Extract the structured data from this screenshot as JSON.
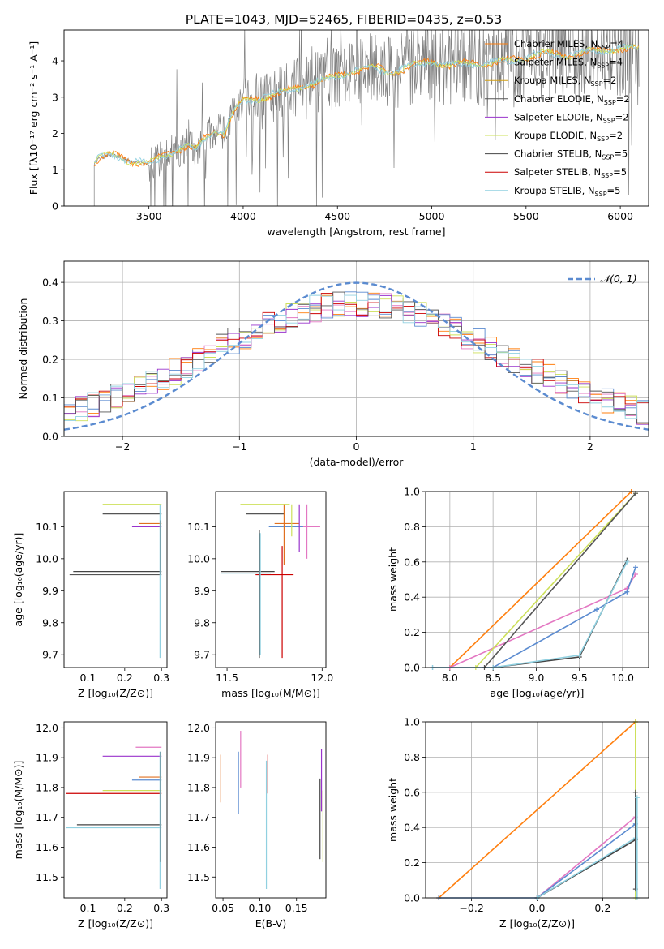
{
  "title": "PLATE=1043, MJD=52465, FIBERID=0435, z=0.53",
  "colors": {
    "chabrier_miles": "#ff7f0e",
    "salpeter_miles": "#e07020",
    "kroupa_miles": "#d4a017",
    "chabrier_elodie": "#555555",
    "salpeter_elodie": "#9933cc",
    "kroupa_elodie": "#cde05a",
    "chabrier_stelib": "#444444",
    "salpeter_stelib": "#cc0000",
    "kroupa_stelib": "#90d0e0",
    "normal": "#5b8bd0"
  },
  "chart_data": [
    {
      "id": "spectrum",
      "type": "line",
      "xlabel": "wavelength [Angstrom, rest frame]",
      "ylabel": "Flux [fλ10⁻¹⁷ erg cm⁻² s⁻¹ A⁻¹]",
      "xlim": [
        3050,
        6150
      ],
      "ylim": [
        0,
        4.85
      ],
      "xticks": [
        3500,
        4000,
        4500,
        5000,
        5500,
        6000
      ],
      "yticks": [
        0,
        1,
        2,
        3,
        4
      ],
      "continuum": {
        "x": [
          3200,
          3230,
          3260,
          3300,
          3350,
          3400,
          3450,
          3500,
          3550,
          3600,
          3650,
          3700,
          3750,
          3800,
          3850,
          3900,
          3950,
          4000,
          4100,
          4200,
          4300,
          4400,
          4500,
          4600,
          4700,
          4800,
          4900,
          5000,
          5100,
          5200,
          5300,
          5400,
          5500,
          5600,
          5700,
          5800,
          5900,
          6000,
          6100
        ],
        "y": [
          1.1,
          1.3,
          1.35,
          1.4,
          1.35,
          1.25,
          1.2,
          1.15,
          1.3,
          1.45,
          1.55,
          1.65,
          1.55,
          1.9,
          2.1,
          2.0,
          2.6,
          2.9,
          3.0,
          3.1,
          3.3,
          3.4,
          3.6,
          3.75,
          3.8,
          3.7,
          3.85,
          4.0,
          3.85,
          3.95,
          3.9,
          4.0,
          4.1,
          4.2,
          4.15,
          4.2,
          4.3,
          4.35,
          4.3
        ]
      },
      "legend": [
        {
          "label": "Chabrier MILES, N",
          "sub": "SSP",
          "tail": "=4",
          "color": "#ff7f0e"
        },
        {
          "label": "Salpeter MILES, N",
          "sub": "SSP",
          "tail": "=4",
          "color": "#e07020"
        },
        {
          "label": "Kroupa MILES, N",
          "sub": "SSP",
          "tail": "=2",
          "color": "#d4a017"
        },
        {
          "label": "Chabrier ELODIE, N",
          "sub": "SSP",
          "tail": "=2",
          "color": "#555555"
        },
        {
          "label": "Salpeter ELODIE, N",
          "sub": "SSP",
          "tail": "=2",
          "color": "#9933cc"
        },
        {
          "label": "Kroupa ELODIE, N",
          "sub": "SSP",
          "tail": "=2",
          "color": "#cde05a"
        },
        {
          "label": "Chabrier STELIB, N",
          "sub": "SSP",
          "tail": "=5",
          "color": "#444444"
        },
        {
          "label": "Salpeter STELIB, N",
          "sub": "SSP",
          "tail": "=5",
          "color": "#cc0000"
        },
        {
          "label": "Kroupa STELIB, N",
          "sub": "SSP",
          "tail": "=5",
          "color": "#90d0e0"
        }
      ]
    },
    {
      "id": "residuals",
      "type": "line",
      "xlabel": "(data-model)/error",
      "ylabel": "Normed distribution",
      "xlim": [
        -2.5,
        2.5
      ],
      "ylim": [
        0,
        0.455
      ],
      "xticks": [
        -2,
        -1,
        0,
        1,
        2
      ],
      "yticks": [
        0.0,
        0.1,
        0.2,
        0.3,
        0.4
      ],
      "grid": true,
      "legend": "𝒩(0, 1)",
      "normal_curve": {
        "mean": 0,
        "sigma": 1
      }
    },
    {
      "id": "age_vs_Z",
      "type": "scatter",
      "xlabel": "Z [log₁₀(Z/Z⊙)]",
      "ylabel": "age  [log₁₀(age/yr)]",
      "xlim": [
        0.035,
        0.315
      ],
      "ylim": [
        9.66,
        10.21
      ],
      "xticks": [
        0.1,
        0.2,
        0.3
      ],
      "yticks": [
        9.7,
        9.8,
        9.9,
        10.0,
        10.1
      ],
      "hbars": [
        {
          "y": 10.17,
          "x0": 0.14,
          "x1": 0.3,
          "color": "#cde05a"
        },
        {
          "y": 10.14,
          "x0": 0.14,
          "x1": 0.3,
          "color": "#555555"
        },
        {
          "y": 10.11,
          "x0": 0.24,
          "x1": 0.3,
          "color": "#e07020"
        },
        {
          "y": 10.1,
          "x0": 0.22,
          "x1": 0.3,
          "color": "#9933cc"
        },
        {
          "y": 9.96,
          "x0": 0.06,
          "x1": 0.3,
          "color": "#444444"
        },
        {
          "y": 9.95,
          "x0": 0.05,
          "x1": 0.3,
          "color": "#555555"
        }
      ],
      "vbars": [
        {
          "x": 0.296,
          "y0": 9.69,
          "y1": 10.17,
          "color": "#90d0e0"
        },
        {
          "x": 0.298,
          "y0": 9.95,
          "y1": 10.12,
          "color": "#444444"
        }
      ]
    },
    {
      "id": "age_vs_mass",
      "type": "scatter",
      "xlabel": "mass [log₁₀(M/M⊙)]",
      "ylabel": "",
      "xlim": [
        11.44,
        12.02
      ],
      "ylim": [
        9.66,
        10.21
      ],
      "xticks": [
        11.5,
        12.0
      ],
      "yticks": [
        9.7,
        9.8,
        9.9,
        10.0,
        10.1
      ],
      "hbars": [
        {
          "y": 10.17,
          "x0": 11.57,
          "x1": 11.83,
          "color": "#cde05a"
        },
        {
          "y": 10.14,
          "x0": 11.6,
          "x1": 11.8,
          "color": "#555555"
        },
        {
          "y": 10.11,
          "x0": 11.75,
          "x1": 11.88,
          "color": "#e07020"
        },
        {
          "y": 10.1,
          "x0": 11.8,
          "x1": 11.99,
          "color": "#e377c2"
        },
        {
          "y": 10.1,
          "x0": 11.72,
          "x1": 11.9,
          "color": "#5b8bd0"
        },
        {
          "y": 9.96,
          "x0": 11.47,
          "x1": 11.75,
          "color": "#444444"
        },
        {
          "y": 9.955,
          "x0": 11.47,
          "x1": 11.73,
          "color": "#90d0e0"
        },
        {
          "y": 9.95,
          "x0": 11.65,
          "x1": 11.85,
          "color": "#cc0000"
        }
      ],
      "vbars": [
        {
          "x": 11.67,
          "y0": 9.69,
          "y1": 10.09,
          "color": "#444444"
        },
        {
          "x": 11.675,
          "y0": 9.7,
          "y1": 10.08,
          "color": "#90d0e0"
        },
        {
          "x": 11.79,
          "y0": 9.69,
          "y1": 10.04,
          "color": "#cc0000"
        },
        {
          "x": 11.8,
          "y0": 9.98,
          "y1": 10.17,
          "color": "#e07020"
        },
        {
          "x": 11.84,
          "y0": 10.07,
          "y1": 10.17,
          "color": "#cde05a"
        },
        {
          "x": 11.88,
          "y0": 10.02,
          "y1": 10.17,
          "color": "#9933cc"
        },
        {
          "x": 11.92,
          "y0": 10.0,
          "y1": 10.17,
          "color": "#e377c2"
        }
      ]
    },
    {
      "id": "weight_vs_age",
      "type": "line",
      "xlabel": "age  [log₁₀(age/yr)]",
      "ylabel": "mass weight",
      "xlim": [
        7.72,
        10.3
      ],
      "ylim": [
        0,
        1.0
      ],
      "xticks": [
        8.0,
        8.5,
        9.0,
        9.5,
        10.0
      ],
      "yticks": [
        0.0,
        0.2,
        0.4,
        0.6,
        0.8,
        1.0
      ],
      "grid": true,
      "series": [
        {
          "color": "#ff7f0e",
          "x": [
            8.0,
            10.1
          ],
          "y": [
            0.0,
            1.0
          ]
        },
        {
          "color": "#e377c2",
          "x": [
            8.0,
            10.05,
            10.15
          ],
          "y": [
            0.0,
            0.45,
            0.53
          ]
        },
        {
          "color": "#5b8bd0",
          "x": [
            7.8,
            8.5,
            9.7,
            10.05,
            10.15
          ],
          "y": [
            0.0,
            0.0,
            0.33,
            0.43,
            0.57
          ]
        },
        {
          "color": "#cde05a",
          "x": [
            8.3,
            10.15
          ],
          "y": [
            0.0,
            0.99
          ]
        },
        {
          "color": "#444444",
          "x": [
            8.5,
            9.5,
            10.05
          ],
          "y": [
            0.0,
            0.06,
            0.61
          ]
        },
        {
          "color": "#90d0e0",
          "x": [
            7.8,
            8.5,
            9.5,
            10.05
          ],
          "y": [
            0.0,
            0.0,
            0.07,
            0.6
          ]
        },
        {
          "color": "#555555",
          "x": [
            8.4,
            10.15
          ],
          "y": [
            0.0,
            0.99
          ]
        }
      ]
    },
    {
      "id": "mass_vs_Z",
      "type": "scatter",
      "xlabel": "Z [log₁₀(Z/Z⊙)]",
      "ylabel": "mass [log₁₀(M/M⊙)]",
      "xlim": [
        0.035,
        0.315
      ],
      "ylim": [
        11.43,
        12.02
      ],
      "xticks": [
        0.1,
        0.2,
        0.3
      ],
      "yticks": [
        11.5,
        11.6,
        11.7,
        11.8,
        11.9,
        12.0
      ],
      "hbars": [
        {
          "y": 11.935,
          "x0": 0.23,
          "x1": 0.3,
          "color": "#e377c2"
        },
        {
          "y": 11.905,
          "x0": 0.14,
          "x1": 0.3,
          "color": "#9933cc"
        },
        {
          "y": 11.835,
          "x0": 0.24,
          "x1": 0.3,
          "color": "#e07020"
        },
        {
          "y": 11.825,
          "x0": 0.22,
          "x1": 0.3,
          "color": "#5b8bd0"
        },
        {
          "y": 11.79,
          "x0": 0.14,
          "x1": 0.3,
          "color": "#cde05a"
        },
        {
          "y": 11.78,
          "x0": 0.04,
          "x1": 0.3,
          "color": "#cc0000"
        },
        {
          "y": 11.675,
          "x0": 0.07,
          "x1": 0.3,
          "color": "#444444"
        },
        {
          "y": 11.665,
          "x0": 0.04,
          "x1": 0.3,
          "color": "#90d0e0"
        }
      ],
      "vbars": [
        {
          "x": 0.296,
          "y0": 11.46,
          "y1": 11.92,
          "color": "#90d0e0"
        },
        {
          "x": 0.298,
          "y0": 11.55,
          "y1": 11.92,
          "color": "#444444"
        }
      ]
    },
    {
      "id": "mass_vs_ebv",
      "type": "scatter",
      "xlabel": "E(B-V)",
      "ylabel": "",
      "xlim": [
        0.04,
        0.19
      ],
      "ylim": [
        11.43,
        12.02
      ],
      "xticks": [
        0.05,
        0.1,
        0.15
      ],
      "yticks": [
        11.5,
        11.6,
        11.7,
        11.8,
        11.9,
        12.0
      ],
      "vbars": [
        {
          "x": 0.047,
          "y0": 11.75,
          "y1": 11.91,
          "color": "#e07020"
        },
        {
          "x": 0.071,
          "y0": 11.71,
          "y1": 11.92,
          "color": "#5b8bd0"
        },
        {
          "x": 0.074,
          "y0": 11.8,
          "y1": 11.99,
          "color": "#e377c2"
        },
        {
          "x": 0.109,
          "y0": 11.46,
          "y1": 11.89,
          "color": "#90d0e0"
        },
        {
          "x": 0.111,
          "y0": 11.78,
          "y1": 11.91,
          "color": "#cc0000"
        },
        {
          "x": 0.182,
          "y0": 11.56,
          "y1": 11.83,
          "color": "#444444"
        },
        {
          "x": 0.184,
          "y0": 11.72,
          "y1": 11.93,
          "color": "#9933cc"
        },
        {
          "x": 0.186,
          "y0": 11.55,
          "y1": 11.79,
          "color": "#cde05a"
        }
      ]
    },
    {
      "id": "weight_vs_Z",
      "type": "line",
      "xlabel": "Z [log₁₀(Z/Z⊙)]",
      "ylabel": "mass weight",
      "xlim": [
        -0.34,
        0.34
      ],
      "ylim": [
        0,
        1.0
      ],
      "xticks": [
        -0.2,
        0.0,
        0.2
      ],
      "yticks": [
        0.0,
        0.2,
        0.4,
        0.6,
        0.8,
        1.0
      ],
      "grid": true,
      "series": [
        {
          "color": "#ff7f0e",
          "x": [
            -0.3,
            0.3
          ],
          "y": [
            0.0,
            1.0
          ]
        },
        {
          "color": "#e377c2",
          "x": [
            0.0,
            0.3
          ],
          "y": [
            0.0,
            0.46
          ]
        },
        {
          "color": "#5b8bd0",
          "x": [
            -0.3,
            0.0,
            0.3
          ],
          "y": [
            0.0,
            0.0,
            0.42
          ]
        },
        {
          "color": "#444444",
          "x": [
            0.0,
            0.3
          ],
          "y": [
            0.0,
            0.33
          ]
        },
        {
          "color": "#90d0e0",
          "x": [
            0.0,
            0.3
          ],
          "y": [
            0.0,
            0.34
          ]
        },
        {
          "color": "#cde05a",
          "x": [
            0.3,
            0.3
          ],
          "y": [
            0.0,
            1.0
          ]
        },
        {
          "color": "#555555",
          "x": [
            0.3,
            0.3
          ],
          "y": [
            0.05,
            0.6
          ]
        },
        {
          "color": "#90d0e0",
          "x": [
            0.305,
            0.305
          ],
          "y": [
            0.0,
            0.57
          ]
        }
      ]
    }
  ]
}
